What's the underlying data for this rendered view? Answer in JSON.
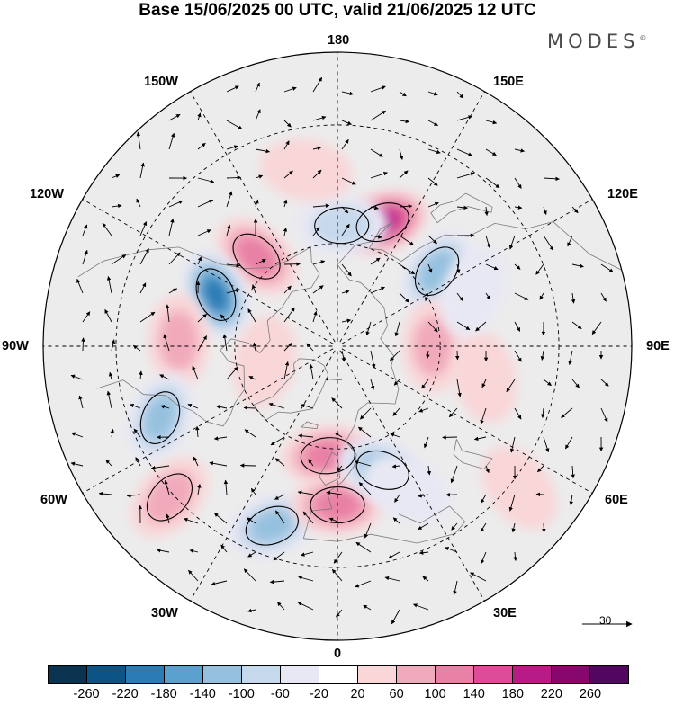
{
  "title": "Base 15/06/2025 00 UTC, valid 21/06/2025 12 UTC",
  "brand": "MODES",
  "brand_mark": "©",
  "longitude_labels": {
    "lon_180": "180",
    "lon_150e": "150E",
    "lon_120e": "120E",
    "lon_90e": "90E",
    "lon_60e": "60E",
    "lon_30e": "30E",
    "lon_0": "0",
    "lon_30w": "30W",
    "lon_60w": "60W",
    "lon_90w": "90W",
    "lon_120w": "120W",
    "lon_150w": "150W"
  },
  "reference_vector": {
    "value": "30"
  },
  "colorbar": {
    "colors": [
      "#0a3350",
      "#0c5486",
      "#2b7bb5",
      "#5aa1cf",
      "#95c1df",
      "#c6d8ec",
      "#e8e8f4",
      "#ffffff",
      "#f9d6d8",
      "#f1aabb",
      "#e980a5",
      "#dc4c98",
      "#b71b85",
      "#87076e",
      "#520660"
    ],
    "ticks": [
      "-260",
      "-220",
      "-180",
      "-140",
      "-100",
      "-60",
      "-20",
      "20",
      "60",
      "100",
      "140",
      "180",
      "220",
      "260"
    ]
  },
  "anomaly_centers": [
    {
      "lon": 160,
      "lat": 52,
      "value": 200
    },
    {
      "lon": 127,
      "lat": 54,
      "value": -150
    },
    {
      "lon": 178,
      "lat": 55,
      "value": -100
    },
    {
      "lon": -138,
      "lat": 55,
      "value": 120
    },
    {
      "lon": -113,
      "lat": 52,
      "value": -210
    },
    {
      "lon": -92,
      "lat": 45,
      "value": 90
    },
    {
      "lon": -68,
      "lat": 37,
      "value": -140
    },
    {
      "lon": -48,
      "lat": 29,
      "value": 110
    },
    {
      "lon": -20,
      "lat": 37,
      "value": -130
    },
    {
      "lon": -5,
      "lat": 58,
      "value": 120
    },
    {
      "lon": 0,
      "lat": 45,
      "value": 140
    },
    {
      "lon": 20,
      "lat": 52,
      "value": -120
    },
    {
      "lon": 26,
      "lat": 45,
      "value": -60
    },
    {
      "lon": 90,
      "lat": 62,
      "value": 90
    },
    {
      "lon": 78,
      "lat": 47,
      "value": 60
    },
    {
      "lon": 52,
      "lat": 28,
      "value": 60
    },
    {
      "lon": 112,
      "lat": 48,
      "value": -40
    },
    {
      "lon": -78,
      "lat": 68,
      "value": 50
    },
    {
      "lon": -130,
      "lat": 70,
      "value": -30
    },
    {
      "lon": -170,
      "lat": 40,
      "value": 40
    }
  ]
}
